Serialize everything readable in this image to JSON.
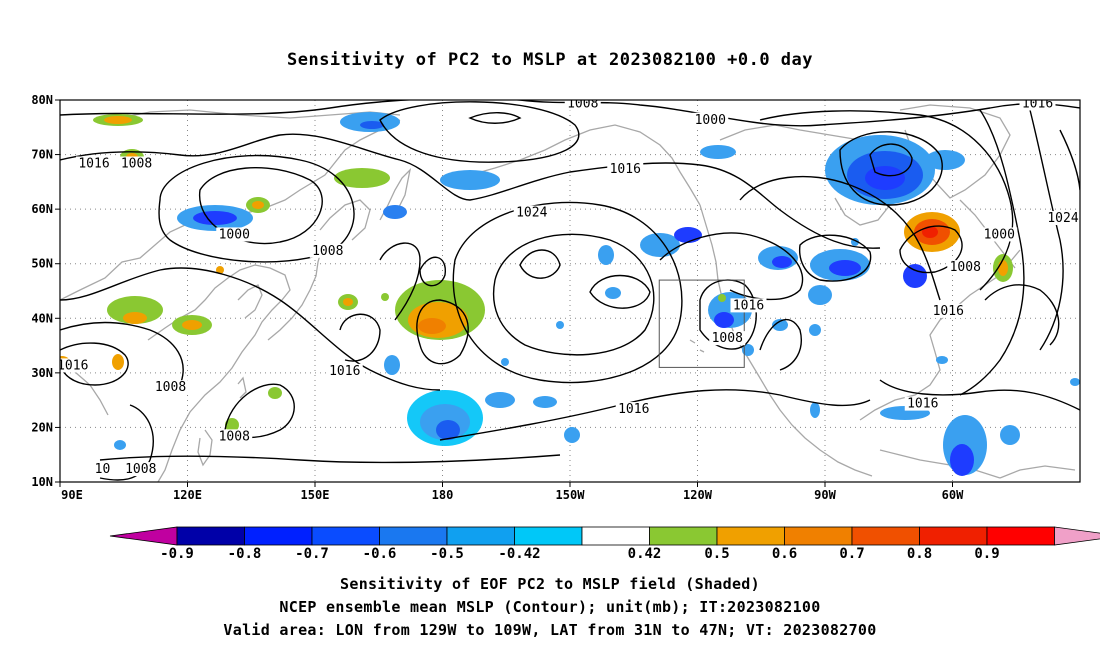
{
  "title": "Sensitivity of PC2 to MSLP at 2023082100 +0.0 day",
  "captions": [
    "Sensitivity of EOF PC2 to MSLP field (Shaded)",
    "NCEP ensemble mean MSLP (Contour); unit(mb); IT:2023082100",
    "Valid area: LON from 129W to 109W, LAT from 31N to 47N; VT: 2023082700"
  ],
  "map": {
    "lon_range": [
      90,
      330
    ],
    "lat_range": [
      10,
      80
    ],
    "lat_ticks": [
      {
        "value": 80,
        "label": "80N"
      },
      {
        "value": 70,
        "label": "70N"
      },
      {
        "value": 60,
        "label": "60N"
      },
      {
        "value": 50,
        "label": "50N"
      },
      {
        "value": 40,
        "label": "40N"
      },
      {
        "value": 30,
        "label": "30N"
      },
      {
        "value": 20,
        "label": "20N"
      },
      {
        "value": 10,
        "label": "10N"
      }
    ],
    "lon_ticks": [
      {
        "value": 90,
        "label": "90E"
      },
      {
        "value": 120,
        "label": "120E"
      },
      {
        "value": 150,
        "label": "150E"
      },
      {
        "value": 180,
        "label": "180"
      },
      {
        "value": 210,
        "label": "150W"
      },
      {
        "value": 240,
        "label": "120W"
      },
      {
        "value": 270,
        "label": "90W"
      },
      {
        "value": 300,
        "label": "60W"
      }
    ],
    "valid_area": {
      "lon_min": 231,
      "lon_max": 251,
      "lat_min": 31,
      "lat_max": 47
    },
    "contour_labels": [
      {
        "text": "1008",
        "lon": 213,
        "lat": 79
      },
      {
        "text": "1016",
        "lon": 320,
        "lat": 79
      },
      {
        "text": "1000",
        "lon": 243,
        "lat": 76
      },
      {
        "text": "1016",
        "lon": 98,
        "lat": 68
      },
      {
        "text": "1008",
        "lon": 108,
        "lat": 68
      },
      {
        "text": "1016",
        "lon": 223,
        "lat": 67
      },
      {
        "text": "1024",
        "lon": 201,
        "lat": 59
      },
      {
        "text": "1000",
        "lon": 131,
        "lat": 55
      },
      {
        "text": "1008",
        "lon": 153,
        "lat": 52
      },
      {
        "text": "1000",
        "lon": 311,
        "lat": 55
      },
      {
        "text": "1024",
        "lon": 326,
        "lat": 58
      },
      {
        "text": "1008",
        "lon": 303,
        "lat": 49
      },
      {
        "text": "1016",
        "lon": 252,
        "lat": 42
      },
      {
        "text": "1016",
        "lon": 299,
        "lat": 41
      },
      {
        "text": "1008",
        "lon": 247,
        "lat": 36
      },
      {
        "text": "1016",
        "lon": 93,
        "lat": 31
      },
      {
        "text": "1016",
        "lon": 157,
        "lat": 30
      },
      {
        "text": "1008",
        "lon": 116,
        "lat": 27
      },
      {
        "text": "1016",
        "lon": 225,
        "lat": 23
      },
      {
        "text": "1016",
        "lon": 293,
        "lat": 24
      },
      {
        "text": "1008",
        "lon": 131,
        "lat": 18
      },
      {
        "text": "1008",
        "lon": 109,
        "lat": 12
      },
      {
        "text": "10",
        "lon": 100,
        "lat": 12
      }
    ],
    "shaded_colors": {
      "negative": [
        "#0a16c8",
        "#1e3cff",
        "#1a5cf0",
        "#2a80f0",
        "#3aa0f0",
        "#14c8f8"
      ],
      "positive": [
        "#8ac832",
        "#f0a000",
        "#f08000",
        "#f05000",
        "#f02000",
        "#f0f"
      ]
    }
  },
  "colorbar": {
    "labels": [
      "-0.9",
      "-0.8",
      "-0.7",
      "-0.6",
      "-0.5",
      "-0.42",
      "0.42",
      "0.5",
      "0.6",
      "0.7",
      "0.8",
      "0.9"
    ],
    "colors": [
      "#c000a0",
      "#0000a8",
      "#0020ff",
      "#0a4cff",
      "#1a78f0",
      "#10a0f0",
      "#00c8f8",
      "#ffffff",
      "#8ac832",
      "#f0a000",
      "#f08000",
      "#f05000",
      "#f02000",
      "#ff0000",
      "#f0a0c8"
    ]
  }
}
